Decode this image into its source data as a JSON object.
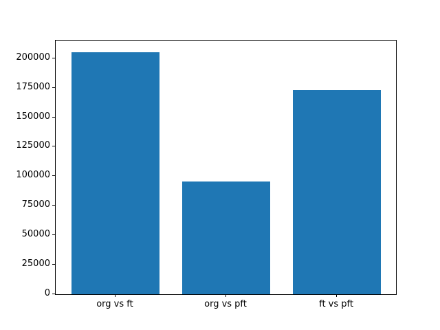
{
  "figure": {
    "background_color": "#ffffff",
    "axis_color": "#000000",
    "bar_color": "#1f77b4"
  },
  "chart_data": {
    "type": "bar",
    "title": "",
    "xlabel": "",
    "ylabel": "",
    "categories": [
      "org vs ft",
      "org vs pft",
      "ft vs pft"
    ],
    "values": [
      205000,
      95500,
      173000
    ],
    "ylim": [
      0,
      215000
    ],
    "xlim": [
      -0.54,
      2.54
    ],
    "yticks": [
      0,
      25000,
      50000,
      75000,
      100000,
      125000,
      150000,
      175000,
      200000
    ],
    "ytick_labels": [
      "0",
      "25000",
      "50000",
      "75000",
      "100000",
      "125000",
      "150000",
      "175000",
      "200000"
    ],
    "bar_width_fraction": 0.8,
    "grid": false,
    "legend": null
  }
}
